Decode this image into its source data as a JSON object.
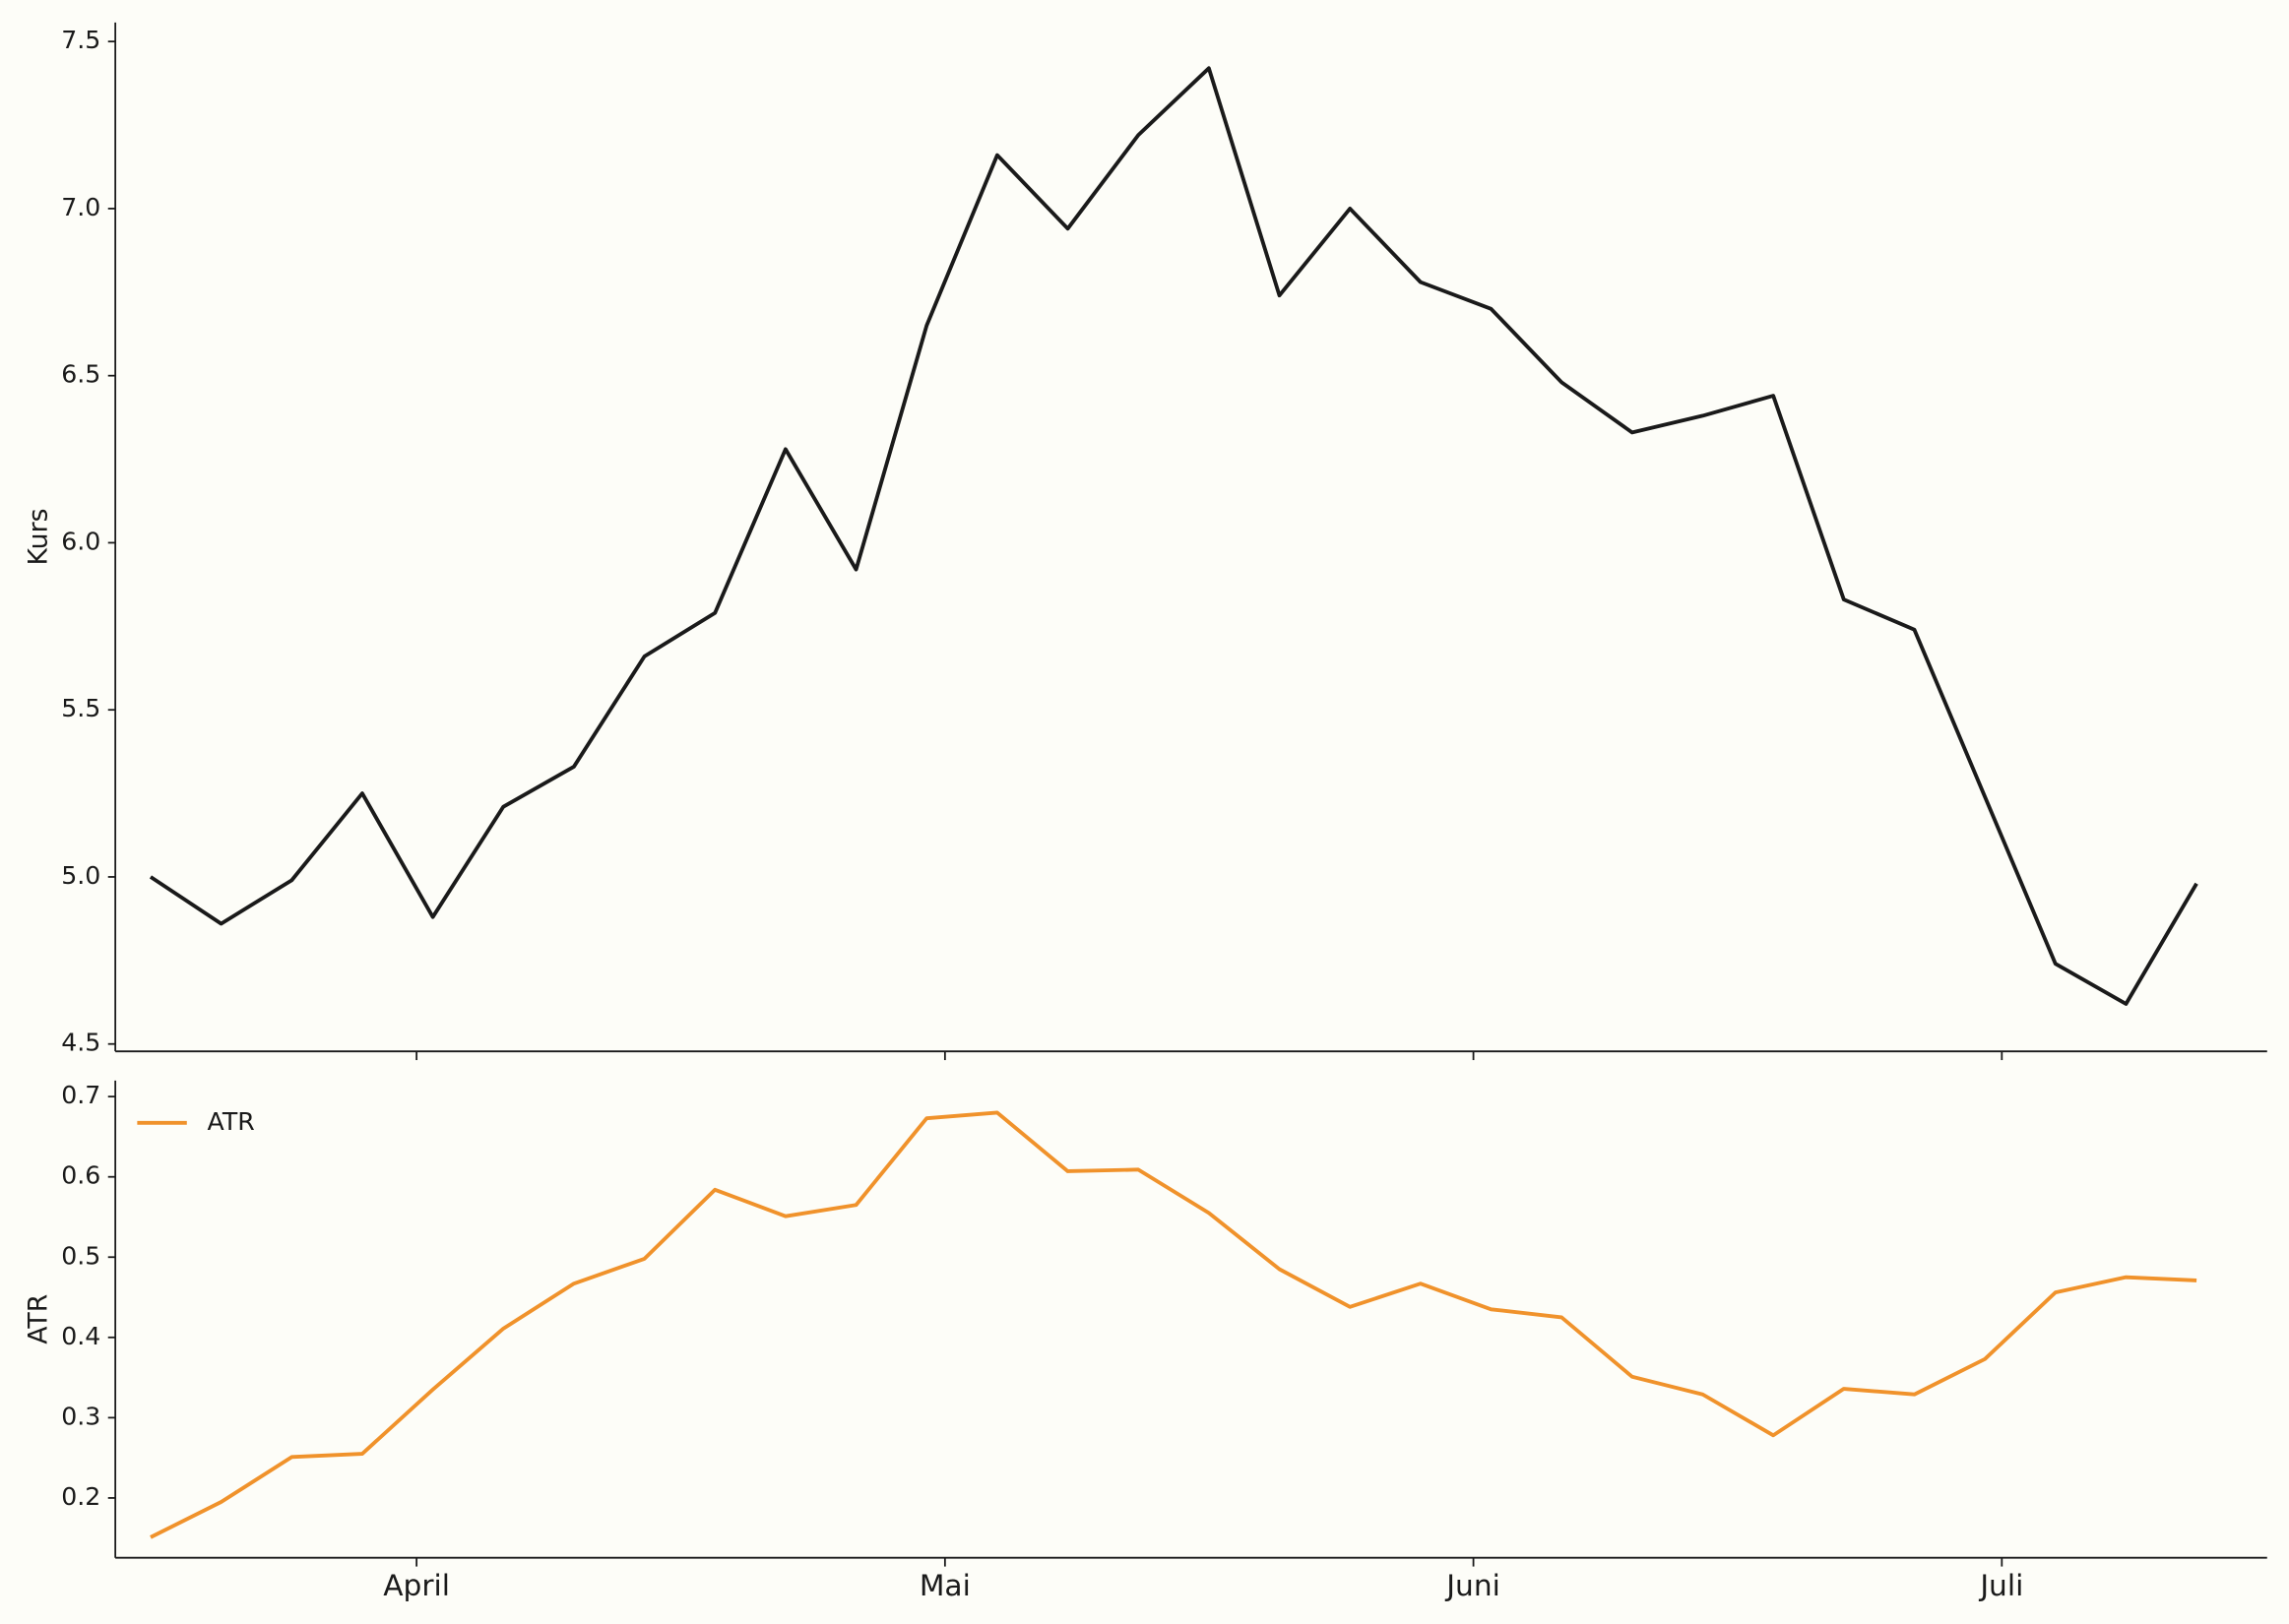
{
  "chart_data": [
    {
      "type": "line",
      "ylabel": "Kurs",
      "series": [
        {
          "color": "#1a1a1a",
          "values": [
            5.0,
            4.86,
            4.99,
            5.25,
            4.88,
            5.21,
            5.33,
            5.66,
            5.79,
            6.28,
            5.92,
            6.65,
            7.16,
            6.94,
            7.22,
            7.42,
            6.74,
            7.0,
            6.78,
            6.7,
            6.48,
            6.33,
            6.38,
            6.44,
            5.83,
            5.74,
            5.24,
            4.74,
            4.62,
            4.98
          ]
        }
      ],
      "xlim": [
        -0.5,
        30
      ],
      "ylim": [
        4.478,
        7.557
      ],
      "yticks": [
        {
          "value": 4.5,
          "label": "4.5"
        },
        {
          "value": 5.0,
          "label": "5.0"
        },
        {
          "value": 5.5,
          "label": "5.5"
        },
        {
          "value": 6.0,
          "label": "6.0"
        },
        {
          "value": 6.5,
          "label": "6.5"
        },
        {
          "value": 7.0,
          "label": "7.0"
        },
        {
          "value": 7.5,
          "label": "7.5"
        }
      ]
    },
    {
      "type": "line",
      "ylabel": "ATR",
      "legend": "upper left",
      "series": [
        {
          "name": "ATR",
          "color": "#f0922b",
          "values": [
            0.151,
            0.195,
            0.251,
            0.255,
            0.335,
            0.411,
            0.467,
            0.498,
            0.584,
            0.551,
            0.565,
            0.673,
            0.68,
            0.607,
            0.609,
            0.555,
            0.485,
            0.438,
            0.467,
            0.435,
            0.425,
            0.351,
            0.329,
            0.278,
            0.336,
            0.329,
            0.373,
            0.456,
            0.475,
            0.471
          ]
        }
      ],
      "xlim": [
        -0.5,
        30
      ],
      "ylim": [
        0.1255,
        0.72
      ],
      "xticks": [
        {
          "value": 3.77,
          "label": "April"
        },
        {
          "value": 11.26,
          "label": "Mai"
        },
        {
          "value": 18.75,
          "label": "Juni"
        },
        {
          "value": 26.24,
          "label": "Juli"
        }
      ],
      "yticks": [
        0.2,
        0.3,
        0.4,
        0.5,
        0.6,
        0.7
      ]
    }
  ]
}
